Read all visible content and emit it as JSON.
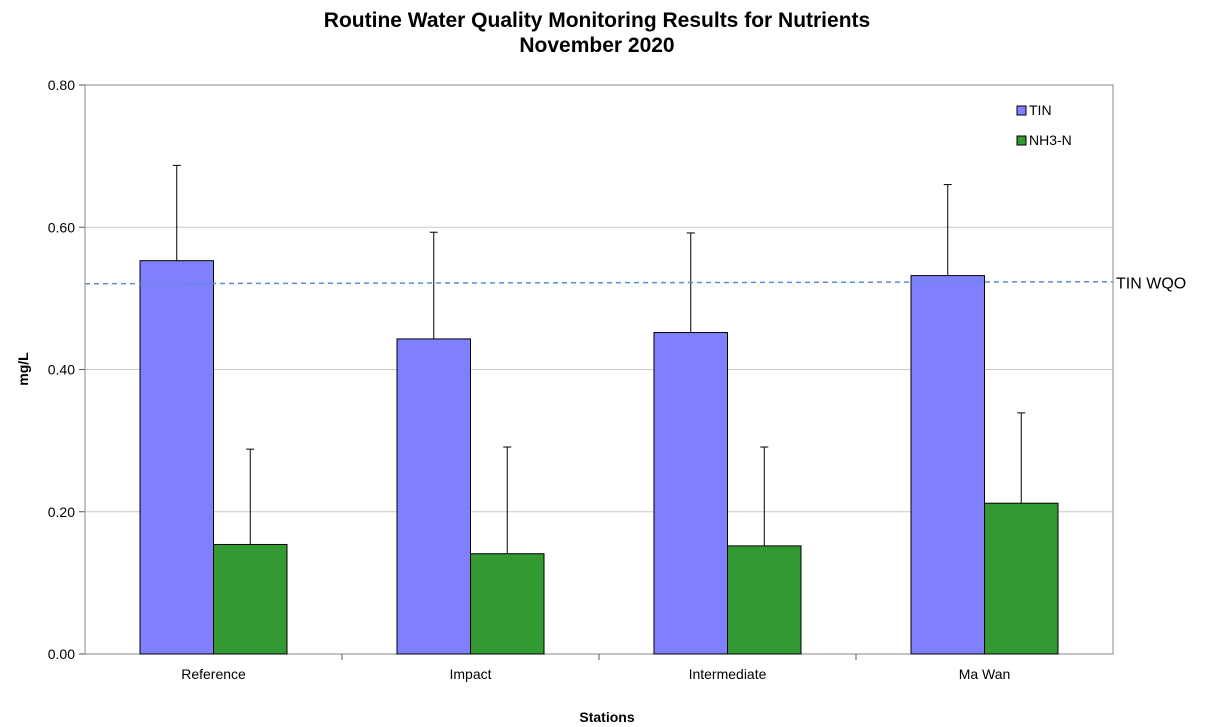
{
  "chart_data": {
    "type": "bar",
    "title": [
      "Routine Water Quality Monitoring Results for Nutrients",
      "November 2020"
    ],
    "xlabel": "Stations",
    "ylabel": "mg/L",
    "categories": [
      "Reference",
      "Impact",
      "Intermediate",
      "Ma Wan"
    ],
    "ylim": [
      0,
      0.8
    ],
    "yticks": [
      0,
      0.2,
      0.4,
      0.6,
      0.8
    ],
    "ytick_labels": [
      "0.00",
      "0.20",
      "0.40",
      "0.60",
      "0.80"
    ],
    "grid": true,
    "legend_position": "top-right",
    "series": [
      {
        "name": "TIN",
        "color": "#8080ff",
        "values": [
          0.553,
          0.443,
          0.452,
          0.532
        ],
        "error_upper": [
          0.687,
          0.593,
          0.592,
          0.66
        ]
      },
      {
        "name": "NH3-N",
        "color": "#339933",
        "values": [
          0.154,
          0.141,
          0.152,
          0.212
        ],
        "error_upper": [
          0.288,
          0.291,
          0.291,
          0.339
        ]
      }
    ],
    "reference_line": {
      "label": "TIN WQO",
      "value": 0.522,
      "color": "#5b8fd0",
      "style": "dashed"
    }
  }
}
